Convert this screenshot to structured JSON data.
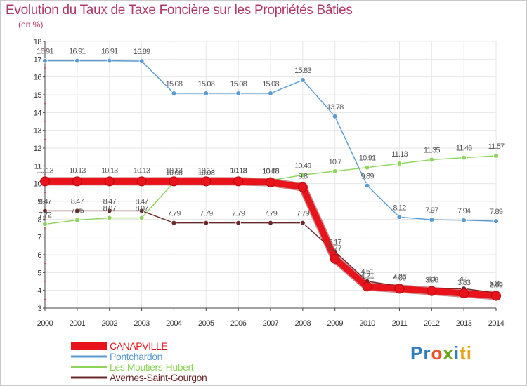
{
  "title": "Evolution du Taux de Taxe Foncière sur les Propriétés Bâties",
  "subtitle": "(en %)",
  "logo": {
    "parts": [
      "Pr",
      "o",
      "x",
      "i",
      "ti"
    ],
    "colors": [
      "#2e7fc0",
      "#e9552b",
      "#6aa51c",
      "#2e7fc0",
      "#e8a21c"
    ]
  },
  "chart_data": {
    "type": "line",
    "title": "Evolution du Taux de Taxe Foncière sur les Propriétés Bâties",
    "ylabel": "(en %)",
    "xlabel": "",
    "ylim": [
      3,
      18
    ],
    "yticks": [
      3,
      4,
      5,
      6,
      7,
      8,
      9,
      10,
      11,
      12,
      13,
      14,
      15,
      16,
      17,
      18
    ],
    "x": [
      2000,
      2001,
      2002,
      2003,
      2004,
      2005,
      2006,
      2007,
      2008,
      2009,
      2010,
      2011,
      2012,
      2013,
      2014
    ],
    "legend_position": "bottom-left",
    "series": [
      {
        "name": "CANAPVILLE",
        "color": "#e8131b",
        "style": "thick",
        "values": [
          10.13,
          10.13,
          10.13,
          10.13,
          10.13,
          10.13,
          10.13,
          10.08,
          9.8,
          5.77,
          4.21,
          4.09,
          3.96,
          3.83,
          3.69
        ],
        "labels": [
          "10.13",
          "10.13",
          "10.13",
          "10.13",
          "10.13",
          "10.13",
          "10.13",
          "10.08",
          "9.8",
          "5.77",
          "4.21",
          "4.09",
          "3.96",
          "3.83",
          "3.69"
        ]
      },
      {
        "name": "Pontchardon",
        "color": "#5b9bd0",
        "style": "thin",
        "values": [
          16.91,
          16.91,
          16.91,
          16.89,
          15.08,
          15.08,
          15.08,
          15.08,
          15.83,
          13.78,
          9.89,
          8.12,
          7.97,
          7.94,
          7.89
        ],
        "labels": [
          "16.91",
          "16.91",
          "16.91",
          "16.89",
          "15.08",
          "15.08",
          "15.08",
          "15.08",
          "15.83",
          "13.78",
          "9.89",
          "8.12",
          "7.97",
          "7.94",
          "7.89"
        ]
      },
      {
        "name": "Les Moutiers-Hubert",
        "color": "#8dd45a",
        "style": "thin",
        "values": [
          7.72,
          7.95,
          8.07,
          8.07,
          10.08,
          10.08,
          10.18,
          10.18,
          10.49,
          10.7,
          10.91,
          11.13,
          11.35,
          11.46,
          11.57
        ],
        "labels": [
          "7.72",
          "7.95",
          "8.07",
          "8.07",
          "10.08",
          "10.08",
          "10.18",
          "10.18",
          "10.49",
          "10.7",
          "10.91",
          "11.13",
          "11.35",
          "11.46",
          "11.57"
        ]
      },
      {
        "name": "Avernes-Saint-Gourgon",
        "color": "#6b2a2a",
        "style": "thin",
        "values": [
          8.47,
          8.47,
          8.47,
          8.47,
          7.79,
          7.79,
          7.79,
          7.79,
          7.79,
          6.17,
          4.51,
          4.23,
          4.1,
          4.1,
          3.85
        ],
        "labels": [
          "8.47",
          "8.47",
          "8.47",
          "8.47",
          "7.79",
          "7.79",
          "7.79",
          "7.79",
          "7.79",
          "6.17",
          "4.51",
          "4.23",
          "4.1",
          "4.1",
          "3.85"
        ]
      }
    ]
  }
}
